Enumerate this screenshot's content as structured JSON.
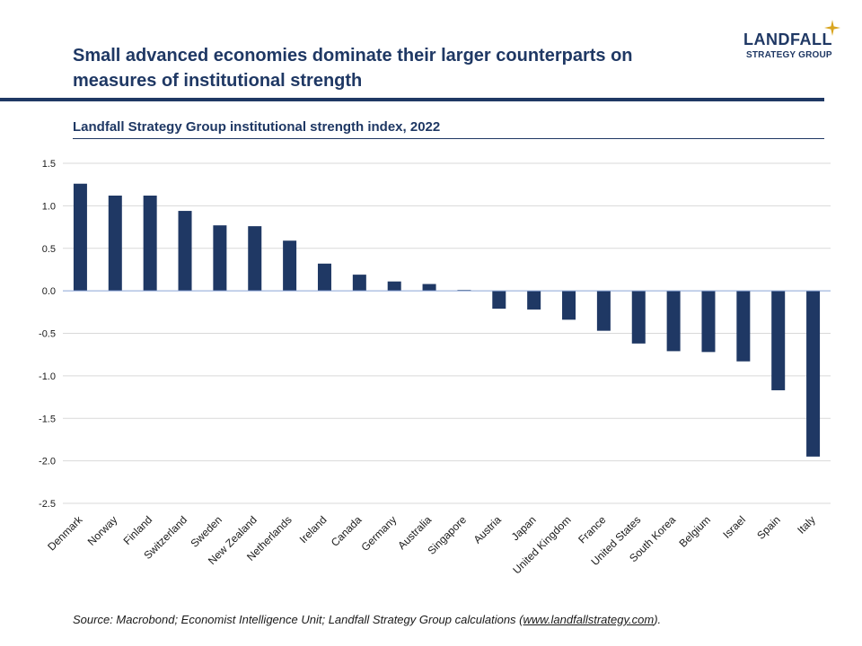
{
  "header": {
    "headline": "Small advanced economies dominate their larger counterparts on measures of institutional strength",
    "brand_name": "LANDFALL",
    "brand_sub": "STRATEGY GROUP",
    "brand_star_color": "#d9a520"
  },
  "chart_data": {
    "type": "bar",
    "title": "Landfall Strategy Group institutional strength index, 2022",
    "xlabel": "",
    "ylabel": "",
    "ylim": [
      -2.5,
      1.5
    ],
    "yticks": [
      "1.5",
      "1.0",
      "0.5",
      "0.0",
      "-0.5",
      "-1.0",
      "-1.5",
      "-2.0",
      "-2.5"
    ],
    "bar_color": "#1f3864",
    "grid": true,
    "categories": [
      "Denmark",
      "Norway",
      "Finland",
      "Switzerland",
      "Sweden",
      "New Zealand",
      "Netherlands",
      "Ireland",
      "Canada",
      "Germany",
      "Australia",
      "Singapore",
      "Austria",
      "Japan",
      "United Kingdom",
      "France",
      "United States",
      "South Korea",
      "Belgium",
      "Israel",
      "Spain",
      "Italy"
    ],
    "values": [
      1.26,
      1.12,
      1.12,
      0.94,
      0.77,
      0.76,
      0.59,
      0.32,
      0.19,
      0.11,
      0.08,
      0.01,
      -0.21,
      -0.22,
      -0.34,
      -0.47,
      -0.62,
      -0.71,
      -0.72,
      -0.83,
      -1.17,
      -1.95
    ]
  },
  "footer": {
    "source_prefix": "Source: Macrobond; Economist Intelligence Unit; Landfall Strategy  Group calculations (",
    "source_link": "www.landfallstrategy.com",
    "source_suffix": ")."
  }
}
